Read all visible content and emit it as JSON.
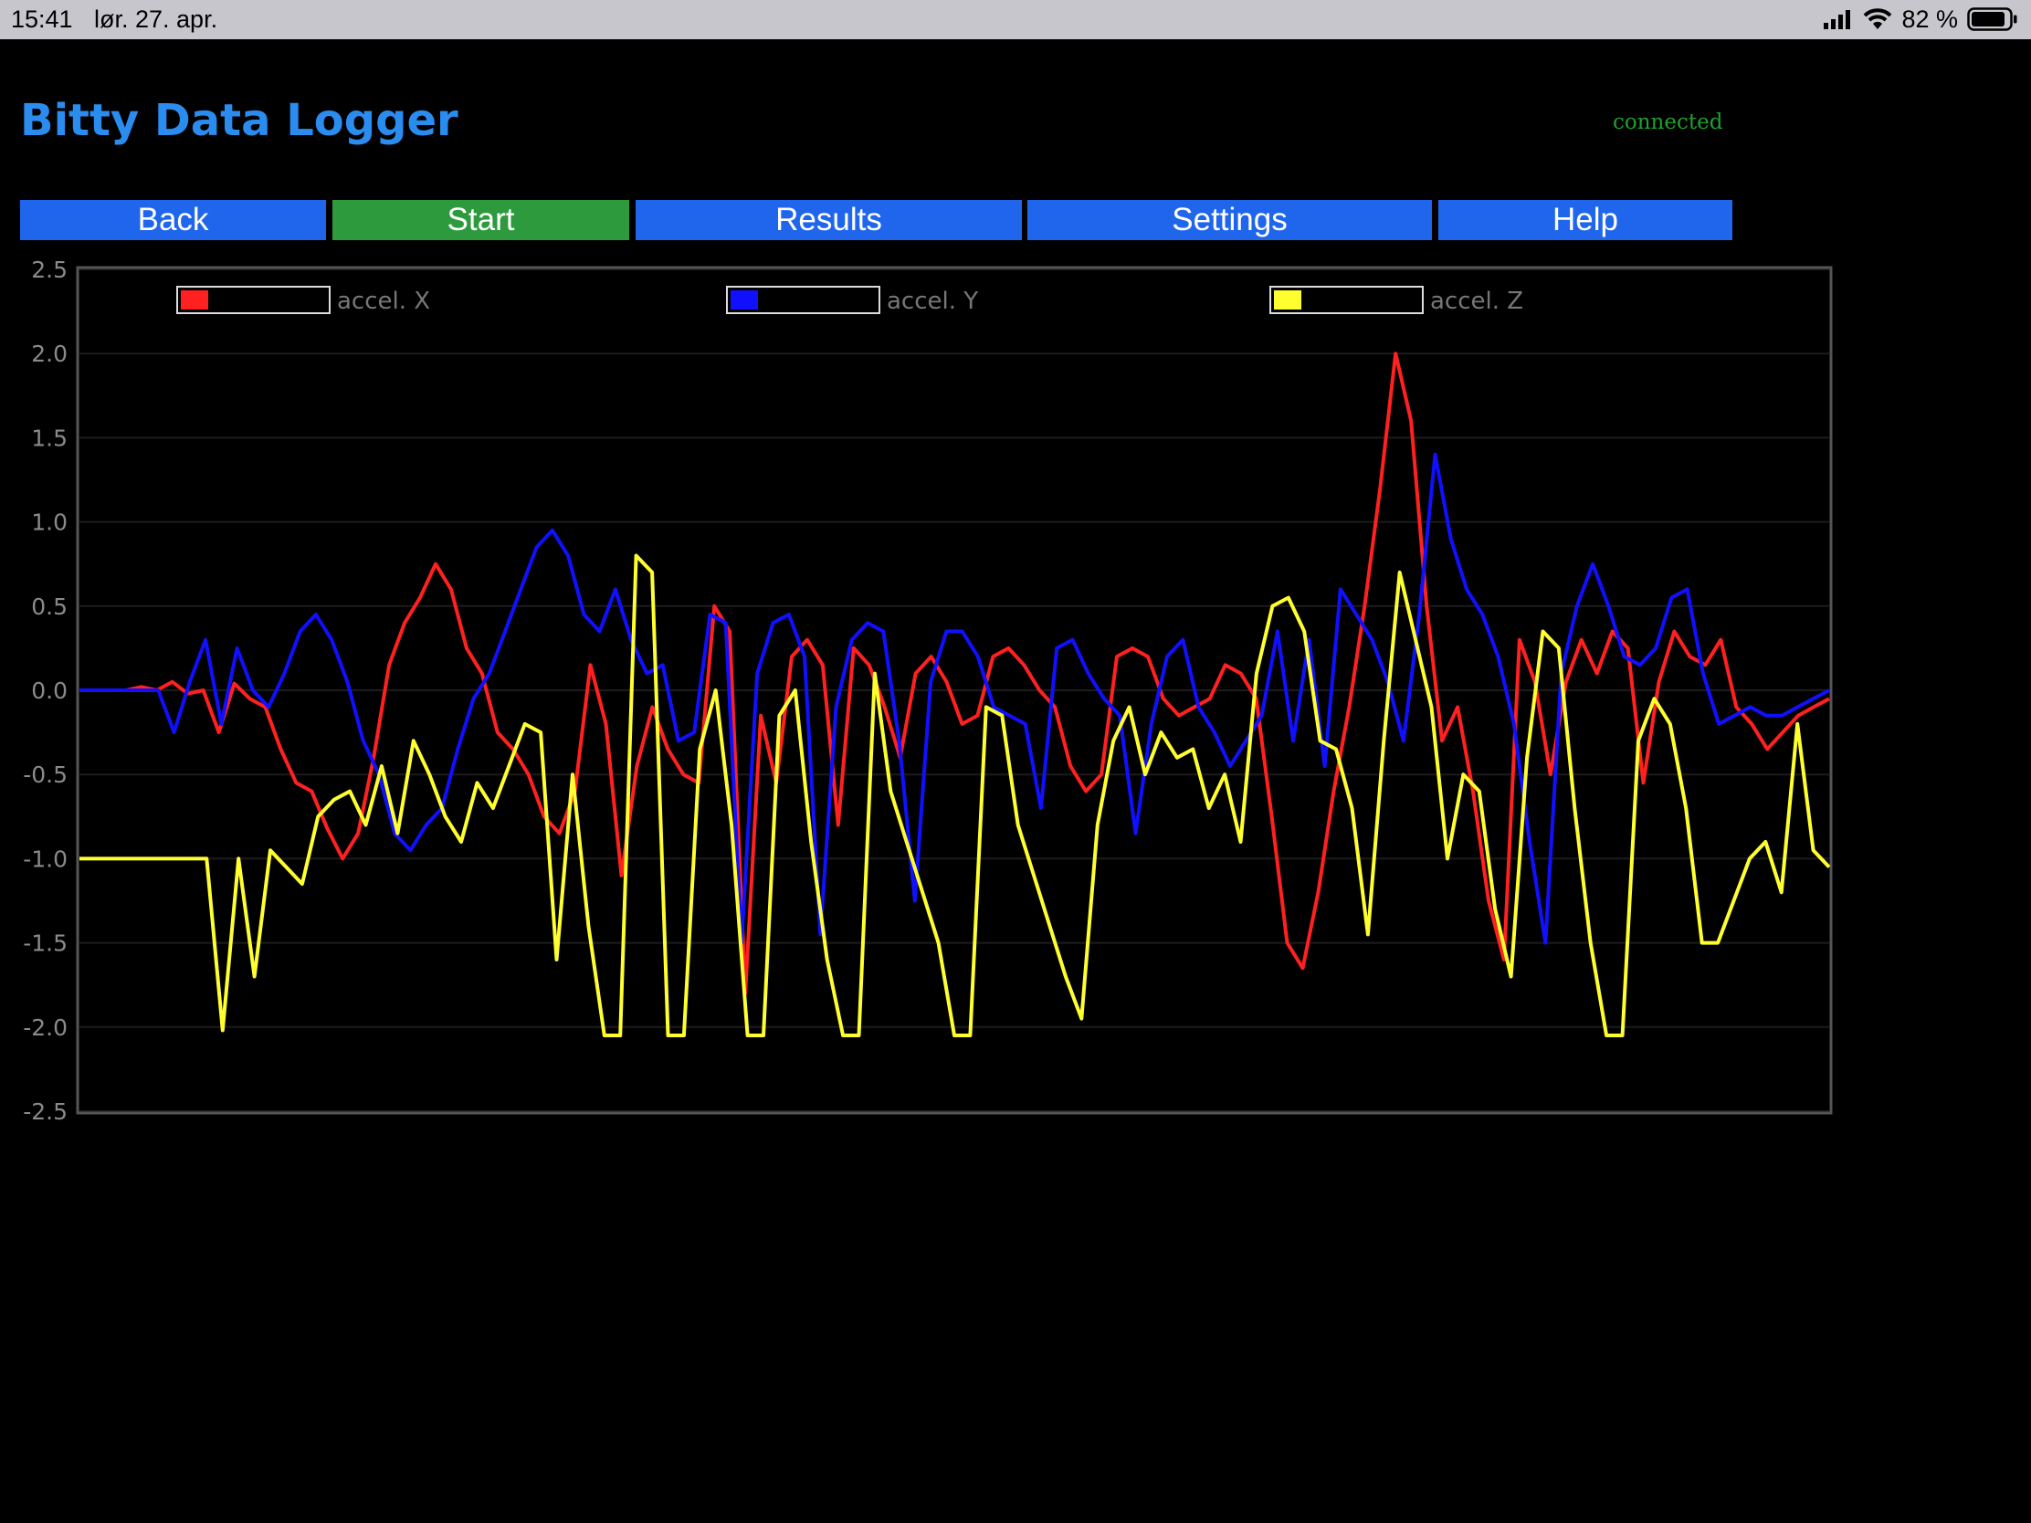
{
  "status_bar": {
    "time": "15:41",
    "date": "lør. 27. apr.",
    "battery": "82 %",
    "icons": [
      "cellular-signal-icon",
      "wifi-icon",
      "battery-icon"
    ]
  },
  "app": {
    "title": "Bitty Data Logger",
    "connection_status": "connected",
    "colors": {
      "title": "#2b8cf0",
      "connected": "#1fa12e",
      "button": "#1f66ec",
      "active_button": "#2c9a3d"
    }
  },
  "nav": {
    "back": "Back",
    "start": "Start",
    "results": "Results",
    "settings": "Settings",
    "help": "Help",
    "active": "start"
  },
  "chart_data": {
    "type": "line",
    "y_ticks": [
      "2.5",
      "2.0",
      "1.5",
      "1.0",
      "0.5",
      "0.0",
      "-0.5",
      "-1.0",
      "-1.5",
      "-2.0",
      "-2.5"
    ],
    "ylim": [
      -2.5,
      2.5
    ],
    "grid": true,
    "legend_position": "top",
    "series": [
      {
        "name": "accel. X",
        "color": "#ff2020",
        "values": [
          0,
          0,
          0,
          0,
          0.02,
          0,
          0.05,
          -0.02,
          0,
          -0.25,
          0.04,
          -0.05,
          -0.1,
          -0.35,
          -0.55,
          -0.6,
          -0.82,
          -1.0,
          -0.85,
          -0.4,
          0.15,
          0.4,
          0.55,
          0.75,
          0.6,
          0.25,
          0.1,
          -0.25,
          -0.35,
          -0.5,
          -0.75,
          -0.85,
          -0.6,
          0.15,
          -0.2,
          -1.1,
          -0.45,
          -0.1,
          -0.35,
          -0.5,
          -0.55,
          0.5,
          0.35,
          -1.8,
          -0.15,
          -0.55,
          0.2,
          0.3,
          0.15,
          -0.8,
          0.25,
          0.15,
          -0.1,
          -0.4,
          0.1,
          0.2,
          0.05,
          -0.2,
          -0.15,
          0.2,
          0.25,
          0.15,
          0,
          -0.1,
          -0.45,
          -0.6,
          -0.5,
          0.2,
          0.25,
          0.2,
          -0.05,
          -0.15,
          -0.1,
          -0.05,
          0.15,
          0.1,
          -0.05,
          -0.75,
          -1.5,
          -1.65,
          -1.2,
          -0.6,
          -0.1,
          0.5,
          1.2,
          2.0,
          1.6,
          0.5,
          -0.3,
          -0.1,
          -0.6,
          -1.25,
          -1.6,
          0.3,
          0.05,
          -0.5,
          0.05,
          0.3,
          0.1,
          0.35,
          0.25,
          -0.55,
          0.05,
          0.35,
          0.2,
          0.15,
          0.3,
          -0.1,
          -0.2,
          -0.35,
          -0.25,
          -0.15,
          -0.1,
          -0.05
        ]
      },
      {
        "name": "accel. Y",
        "color": "#1010ff",
        "values": [
          0,
          0,
          0,
          0,
          0,
          0,
          -0.25,
          0.05,
          0.3,
          -0.2,
          0.25,
          0,
          -0.1,
          0.1,
          0.35,
          0.45,
          0.3,
          0.05,
          -0.3,
          -0.5,
          -0.85,
          -0.95,
          -0.8,
          -0.7,
          -0.35,
          -0.05,
          0.1,
          0.35,
          0.6,
          0.85,
          0.95,
          0.8,
          0.45,
          0.35,
          0.6,
          0.3,
          0.1,
          0.15,
          -0.3,
          -0.25,
          0.45,
          0.4,
          -1.5,
          0.1,
          0.4,
          0.45,
          0.2,
          -1.45,
          -0.1,
          0.3,
          0.4,
          0.35,
          -0.3,
          -1.25,
          0.05,
          0.35,
          0.35,
          0.2,
          -0.1,
          -0.15,
          -0.2,
          -0.7,
          0.25,
          0.3,
          0.1,
          -0.05,
          -0.15,
          -0.85,
          -0.2,
          0.2,
          0.3,
          -0.1,
          -0.25,
          -0.45,
          -0.3,
          -0.15,
          0.35,
          -0.3,
          0.3,
          -0.45,
          0.6,
          0.45,
          0.3,
          0.05,
          -0.3,
          0.45,
          1.4,
          0.9,
          0.6,
          0.45,
          0.2,
          -0.2,
          -0.9,
          -1.5,
          0.1,
          0.5,
          0.75,
          0.5,
          0.2,
          0.15,
          0.25,
          0.55,
          0.6,
          0.1,
          -0.2,
          -0.15,
          -0.1,
          -0.15,
          -0.15,
          -0.1,
          -0.05,
          0
        ]
      },
      {
        "name": "accel. Z",
        "color": "#ffff30",
        "values": [
          -1,
          -1,
          -1,
          -1,
          -1,
          -1,
          -1,
          -1,
          -1,
          -2.02,
          -1,
          -1.7,
          -0.95,
          -1.05,
          -1.15,
          -0.75,
          -0.65,
          -0.6,
          -0.8,
          -0.45,
          -0.85,
          -0.3,
          -0.5,
          -0.75,
          -0.9,
          -0.55,
          -0.7,
          -0.45,
          -0.2,
          -0.25,
          -1.6,
          -0.5,
          -1.4,
          -2.05,
          -2.05,
          0.8,
          0.7,
          -2.05,
          -2.05,
          -0.35,
          0,
          -0.8,
          -2.05,
          -2.05,
          -0.15,
          0,
          -0.9,
          -1.6,
          -2.05,
          -2.05,
          0.1,
          -0.6,
          -0.9,
          -1.2,
          -1.5,
          -2.05,
          -2.05,
          -0.1,
          -0.15,
          -0.8,
          -1.1,
          -1.4,
          -1.7,
          -1.95,
          -0.8,
          -0.3,
          -0.1,
          -0.5,
          -0.25,
          -0.4,
          -0.35,
          -0.7,
          -0.5,
          -0.9,
          0.1,
          0.5,
          0.55,
          0.35,
          -0.3,
          -0.35,
          -0.7,
          -1.45,
          -0.3,
          0.7,
          0.3,
          -0.1,
          -1,
          -0.5,
          -0.6,
          -1.3,
          -1.7,
          -0.4,
          0.35,
          0.25,
          -0.7,
          -1.5,
          -2.05,
          -2.05,
          -0.3,
          -0.05,
          -0.2,
          -0.7,
          -1.5,
          -1.5,
          -1.25,
          -1.0,
          -0.9,
          -1.2,
          -0.2,
          -0.95,
          -1.05
        ]
      }
    ]
  }
}
